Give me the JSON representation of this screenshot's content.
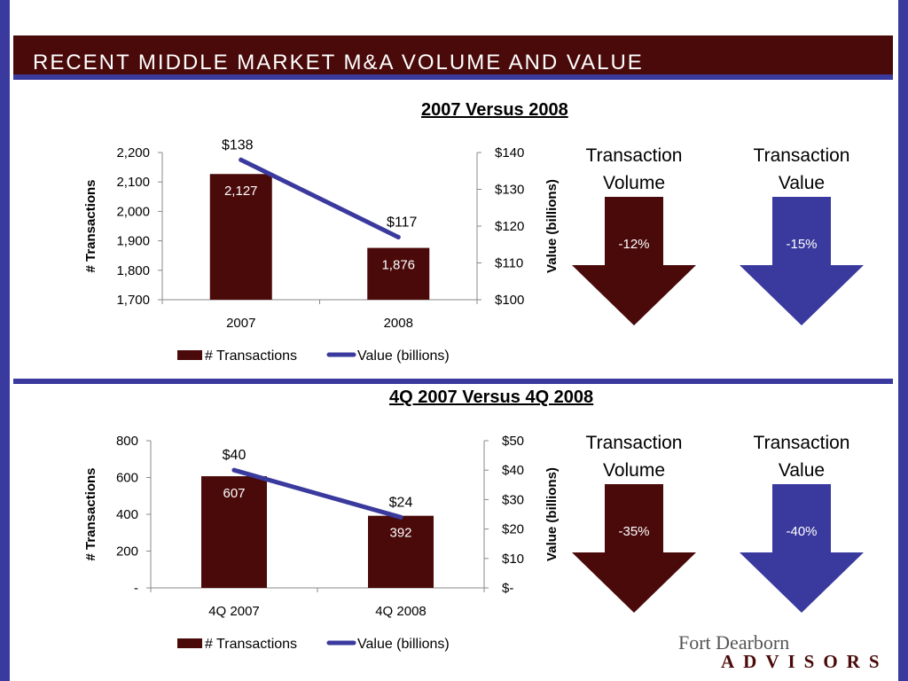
{
  "slide_title": "RECENT MIDDLE MARKET M&A VOLUME AND VALUE",
  "colors": {
    "bar": "#4a0a0a",
    "line": "#3a3a9e",
    "frame": "#3a3a9e"
  },
  "chart_data": [
    {
      "type": "bar",
      "title": "2007 Versus 2008",
      "categories": [
        "2007",
        "2008"
      ],
      "ylabel": "# Transactions",
      "y2label": "Value (billions)",
      "ylim": [
        1700,
        2200
      ],
      "y2lim": [
        100,
        140
      ],
      "yticks": [
        "1,700",
        "1,800",
        "1,900",
        "2,000",
        "2,100",
        "2,200"
      ],
      "y2ticks": [
        "$100",
        "$110",
        "$120",
        "$130",
        "$140"
      ],
      "series": [
        {
          "name": "# Transactions",
          "type": "bar",
          "values": [
            2127,
            1876
          ],
          "labels": [
            "2,127",
            "1,876"
          ]
        },
        {
          "name": "Value (billions)",
          "type": "line",
          "axis": "secondary",
          "values": [
            138,
            117
          ],
          "labels": [
            "$138",
            "$117"
          ]
        }
      ],
      "legend": "bottom",
      "grid": false
    },
    {
      "type": "bar",
      "title": "4Q 2007 Versus 4Q 2008",
      "categories": [
        "4Q 2007",
        "4Q 2008"
      ],
      "ylabel": "# Transactions",
      "y2label": "Value (billions)",
      "ylim": [
        0,
        800
      ],
      "y2lim": [
        0,
        50
      ],
      "yticks": [
        "-",
        "200",
        "400",
        "600",
        "800"
      ],
      "y2ticks": [
        "$-",
        "$10",
        "$20",
        "$30",
        "$40",
        "$50"
      ],
      "series": [
        {
          "name": "# Transactions",
          "type": "bar",
          "values": [
            607,
            392
          ],
          "labels": [
            "607",
            "392"
          ]
        },
        {
          "name": "Value (billions)",
          "type": "line",
          "axis": "secondary",
          "values": [
            40,
            24
          ],
          "labels": [
            "$40",
            "$24"
          ]
        }
      ],
      "legend": "bottom",
      "grid": false
    }
  ],
  "arrows": [
    [
      {
        "label": "Transaction Volume",
        "percent": "-12%",
        "color": "#4a0a0a",
        "icon": "down-arrow"
      },
      {
        "label": "Transaction Value",
        "percent": "-15%",
        "color": "#3a3a9e",
        "icon": "down-arrow"
      }
    ],
    [
      {
        "label": "Transaction Volume",
        "percent": "-35%",
        "color": "#4a0a0a",
        "icon": "down-arrow"
      },
      {
        "label": "Transaction Value",
        "percent": "-40%",
        "color": "#3a3a9e",
        "icon": "down-arrow"
      }
    ]
  ],
  "logo": {
    "line1": "Fort Dearborn",
    "line2": "ADVISORS"
  }
}
